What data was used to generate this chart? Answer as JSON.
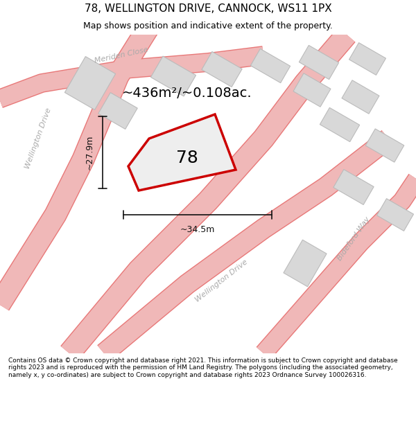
{
  "title": "78, WELLINGTON DRIVE, CANNOCK, WS11 1PX",
  "subtitle": "Map shows position and indicative extent of the property.",
  "footer": "Contains OS data © Crown copyright and database right 2021. This information is subject to Crown copyright and database rights 2023 and is reproduced with the permission of HM Land Registry. The polygons (including the associated geometry, namely x, y co-ordinates) are subject to Crown copyright and database rights 2023 Ordnance Survey 100026316.",
  "area_label": "~436m²/~0.108ac.",
  "width_label": "~34.5m",
  "height_label": "~27.9m",
  "property_number": "78",
  "bg_color": "#f5f5f5",
  "map_bg": "#ffffff",
  "road_color": "#f0b8b8",
  "road_outline_color": "#e87878",
  "building_color": "#d8d8d8",
  "building_outline": "#bbbbbb",
  "property_fill": "#e8e8e8",
  "property_outline": "#cc0000",
  "street_label_color": "#aaaaaa",
  "dim_line_color": "#111111"
}
